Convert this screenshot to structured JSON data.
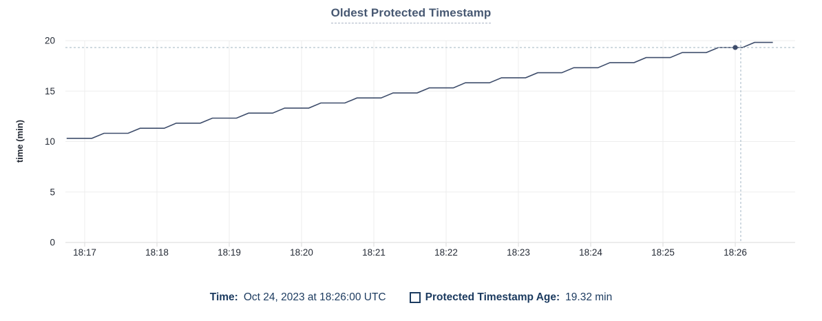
{
  "title": "Oldest Protected Timestamp",
  "colors": {
    "title": "#475872",
    "series_line": "#3e4d6b",
    "grid": "#ededed",
    "axis_line": "#d9d9d9",
    "axis_text": "#242a35",
    "crosshair": "#a1b5c2",
    "legend_text": "#1b3a5f"
  },
  "chart_data": {
    "type": "line",
    "title": "Oldest Protected Timestamp",
    "xlabel": "",
    "ylabel": "time (min)",
    "ylim": [
      0,
      20
    ],
    "y_ticks": [
      0,
      5,
      10,
      15,
      20
    ],
    "x_ticks": [
      "18:17",
      "18:18",
      "18:19",
      "18:20",
      "18:21",
      "18:22",
      "18:23",
      "18:24",
      "18:25",
      "18:26"
    ],
    "grid": "on",
    "series": [
      {
        "name": "Protected Timestamp Age",
        "x_unit": "minutes after 18:16:00 UTC",
        "points": [
          [
            0.75,
            10.32
          ],
          [
            1.1,
            10.32
          ],
          [
            1.267,
            10.82
          ],
          [
            1.6,
            10.82
          ],
          [
            1.767,
            11.32
          ],
          [
            2.1,
            11.32
          ],
          [
            2.267,
            11.82
          ],
          [
            2.6,
            11.82
          ],
          [
            2.767,
            12.32
          ],
          [
            3.1,
            12.32
          ],
          [
            3.267,
            12.82
          ],
          [
            3.6,
            12.82
          ],
          [
            3.767,
            13.32
          ],
          [
            4.1,
            13.32
          ],
          [
            4.267,
            13.82
          ],
          [
            4.6,
            13.82
          ],
          [
            4.767,
            14.32
          ],
          [
            5.1,
            14.32
          ],
          [
            5.267,
            14.82
          ],
          [
            5.6,
            14.82
          ],
          [
            5.767,
            15.32
          ],
          [
            6.1,
            15.32
          ],
          [
            6.267,
            15.82
          ],
          [
            6.6,
            15.82
          ],
          [
            6.767,
            16.32
          ],
          [
            7.1,
            16.32
          ],
          [
            7.267,
            16.82
          ],
          [
            7.6,
            16.82
          ],
          [
            7.767,
            17.32
          ],
          [
            8.1,
            17.32
          ],
          [
            8.267,
            17.82
          ],
          [
            8.6,
            17.82
          ],
          [
            8.767,
            18.32
          ],
          [
            9.1,
            18.32
          ],
          [
            9.267,
            18.82
          ],
          [
            9.6,
            18.82
          ],
          [
            9.767,
            19.32
          ],
          [
            10.1,
            19.32
          ],
          [
            10.267,
            19.82
          ],
          [
            10.52,
            19.82
          ]
        ]
      }
    ],
    "hover": {
      "time_label": "18:26:00",
      "time_min": 10.0,
      "cursor_time_min": 10.076,
      "value": 19.32
    }
  },
  "tooltip": {
    "time_label": "Time:",
    "time_value": "Oct 24, 2023 at 18:26:00 UTC",
    "series_label": "Protected Timestamp Age:",
    "series_value": "19.32 min"
  }
}
